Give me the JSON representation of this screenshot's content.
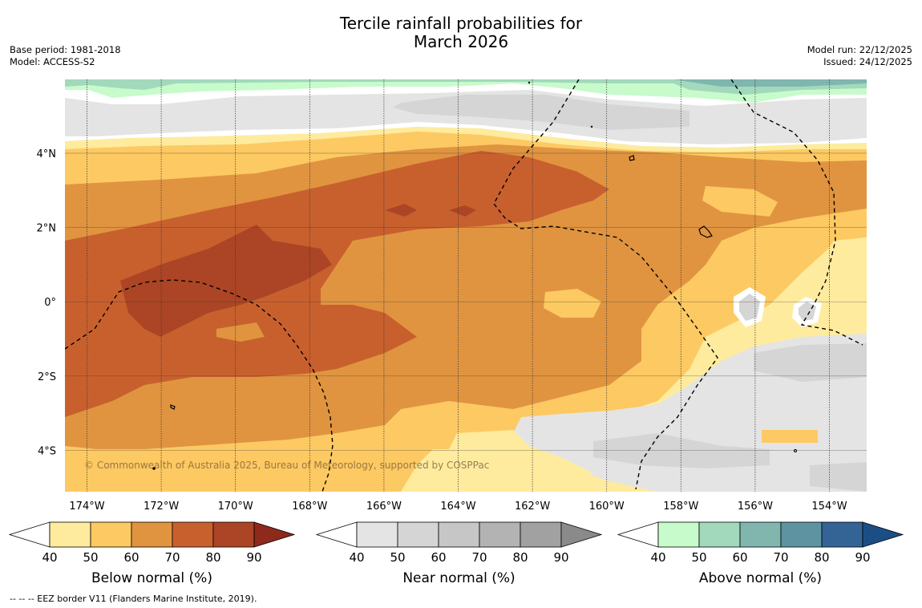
{
  "title": {
    "line1": "Tercile rainfall probabilities for",
    "line2": "March 2026"
  },
  "meta_left": {
    "base_period": "Base period: 1981-2018",
    "model": "Model: ACCESS-S2"
  },
  "meta_right": {
    "model_run": "Model run: 22/12/2025",
    "issued": "Issued: 24/12/2025"
  },
  "map": {
    "copyright": "© Commonwealth of Australia 2025, Bureau of Meteorology, supported by COSPPac",
    "lon_ticks": [
      "174°W",
      "172°W",
      "170°W",
      "168°W",
      "166°W",
      "164°W",
      "162°W",
      "160°W",
      "158°W",
      "156°W",
      "154°W"
    ],
    "lat_ticks": [
      "4°N",
      "2°N",
      "0°",
      "2°S",
      "4°S"
    ]
  },
  "colorbars": [
    {
      "label": "Below normal (%)",
      "ticks": [
        "40",
        "50",
        "60",
        "70",
        "80",
        "90"
      ],
      "colors": [
        "#ffffff",
        "#feeb9e",
        "#fdc962",
        "#e09440",
        "#c8602e",
        "#ac4525",
        "#8d2a1c"
      ]
    },
    {
      "label": "Near normal (%)",
      "ticks": [
        "40",
        "50",
        "60",
        "70",
        "80",
        "90"
      ],
      "colors": [
        "#ffffff",
        "#e4e4e4",
        "#d5d5d5",
        "#c6c6c6",
        "#b3b3b3",
        "#a1a1a1",
        "#8a8a8a"
      ]
    },
    {
      "label": "Above normal (%)",
      "ticks": [
        "40",
        "50",
        "60",
        "70",
        "80",
        "90"
      ],
      "colors": [
        "#ffffff",
        "#c7fbcb",
        "#a2d8bc",
        "#80b6ae",
        "#5e93a1",
        "#346496",
        "#1c4e86"
      ]
    }
  ],
  "footer": "--  --  -- EEZ border V11 (Flanders Marine Institute, 2019).",
  "colors": {
    "below_50": "#feeb9e",
    "below_60": "#fdc962",
    "below_70": "#e09440",
    "below_80": "#c8602e",
    "below_90": "#ac4525",
    "near_50": "#e4e4e4",
    "near_60": "#d5d5d5",
    "above_50": "#c7fbcb",
    "above_60": "#a2d8bc",
    "above_70": "#80b6ae"
  }
}
